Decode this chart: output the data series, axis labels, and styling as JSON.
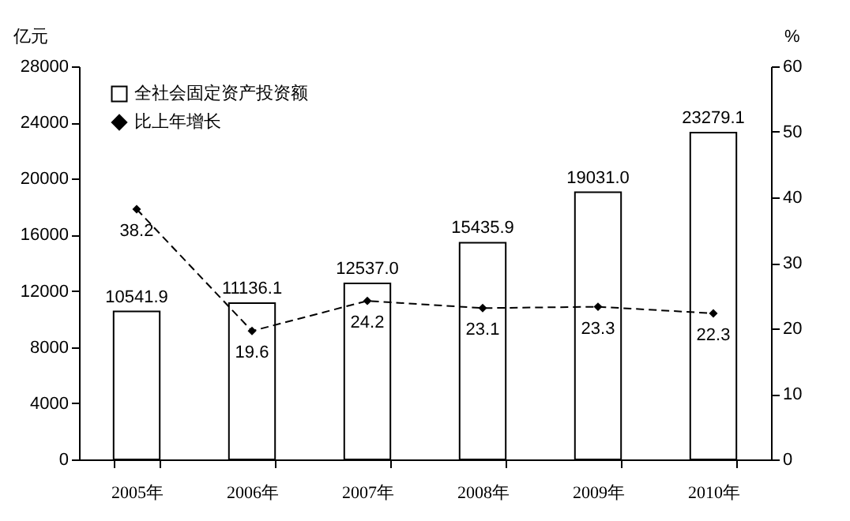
{
  "chart_data": {
    "type": "bar",
    "categories": [
      "2005年",
      "2006年",
      "2007年",
      "2008年",
      "2009年",
      "2010年"
    ],
    "ylabel": "亿元",
    "y2label": "%",
    "ylim": [
      0,
      28000
    ],
    "yticks": [
      0,
      4000,
      8000,
      12000,
      16000,
      20000,
      24000,
      28000
    ],
    "y2lim": [
      0,
      60
    ],
    "y2ticks": [
      0,
      10,
      20,
      30,
      40,
      50,
      60
    ],
    "series": [
      {
        "name": "全社会固定资产投资额",
        "color": "#ffffff",
        "values": [
          10541.9,
          11136.1,
          12537.0,
          15435.9,
          19031.0,
          23279.1
        ],
        "value_labels": [
          "10541.9",
          "11136.1",
          "12537.0",
          "15435.9",
          "19031.0",
          "23279.1"
        ]
      },
      {
        "name": "比上年增长",
        "type": "line",
        "axis": "y2",
        "color": "#000000",
        "marker": "diamond",
        "line_style": "dashed",
        "values": [
          38.2,
          19.6,
          24.2,
          23.1,
          23.3,
          22.3
        ],
        "value_labels": [
          "38.2",
          "19.6",
          "24.2",
          "23.1",
          "23.3",
          "22.3"
        ]
      }
    ],
    "grid": false,
    "legend": "top left"
  }
}
